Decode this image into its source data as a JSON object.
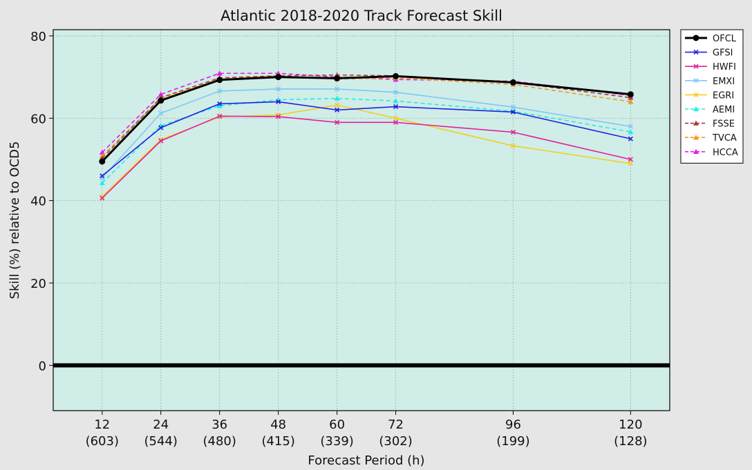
{
  "chart_data": {
    "type": "line",
    "title": "Atlantic 2018-2020 Track Forecast Skill",
    "xlabel": "Forecast Period (h)",
    "ylabel": "Skill (%) relative to OCD5",
    "x": [
      12,
      24,
      36,
      48,
      60,
      72,
      96,
      120
    ],
    "x_tick_labels": [
      "12",
      "24",
      "36",
      "48",
      "60",
      "72",
      "96",
      "120"
    ],
    "x_tick_counts": [
      "(603)",
      "(544)",
      "(480)",
      "(415)",
      "(339)",
      "(302)",
      "(199)",
      "(128)"
    ],
    "xlim": [
      2,
      128
    ],
    "ylim": [
      -11,
      81.5
    ],
    "y_ticks": [
      0,
      20,
      40,
      60,
      80
    ],
    "y_tick_labels": [
      "0",
      "20",
      "40",
      "60",
      "80"
    ],
    "grid": true,
    "background": "#d0ede8",
    "zero_line": true,
    "legend_position": "right-top",
    "series": [
      {
        "name": "OFCL",
        "color": "#000000",
        "dash": "solid",
        "marker": "circle",
        "width": 3,
        "values": [
          49.5,
          64.3,
          69.3,
          70.0,
          69.7,
          70.2,
          68.7,
          65.8
        ]
      },
      {
        "name": "GFSI",
        "color": "#1f1fe0",
        "dash": "solid",
        "marker": "x",
        "width": 1.6,
        "values": [
          46.0,
          57.7,
          63.5,
          64.0,
          62.0,
          62.8,
          61.5,
          55.0
        ]
      },
      {
        "name": "HWFI",
        "color": "#e0229a",
        "dash": "solid",
        "marker": "x",
        "width": 1.6,
        "values": [
          40.6,
          54.5,
          60.5,
          60.4,
          59.0,
          59.0,
          56.6,
          50.0
        ]
      },
      {
        "name": "EMXI",
        "color": "#7ec8f5",
        "dash": "solid",
        "marker": "x",
        "width": 1.6,
        "values": [
          45.5,
          61.2,
          66.6,
          67.1,
          67.1,
          66.3,
          62.7,
          58.0
        ]
      },
      {
        "name": "EGRI",
        "color": "#f2cf20",
        "dash": "solid",
        "marker": "x",
        "width": 1.6,
        "values": [
          41.0,
          54.8,
          60.3,
          60.8,
          63.2,
          60.0,
          53.3,
          49.0
        ]
      },
      {
        "name": "AEMI",
        "color": "#22ece8",
        "dash": "dashed",
        "marker": "triangle",
        "width": 1.6,
        "values": [
          44.3,
          58.2,
          63.0,
          64.5,
          64.8,
          64.2,
          61.7,
          56.7
        ]
      },
      {
        "name": "FSSE",
        "color": "#a83a3a",
        "dash": "dashed",
        "marker": "triangle",
        "width": 1.6,
        "values": [
          50.3,
          65.0,
          69.8,
          70.3,
          70.5,
          70.3,
          68.7,
          65.0
        ]
      },
      {
        "name": "TVCA",
        "color": "#f29a1a",
        "dash": "dashed",
        "marker": "triangle",
        "width": 1.6,
        "values": [
          50.8,
          64.8,
          69.5,
          70.3,
          69.5,
          69.8,
          68.2,
          64.0
        ]
      },
      {
        "name": "HCCA",
        "color": "#ea18e8",
        "dash": "dashed",
        "marker": "triangle",
        "width": 1.6,
        "values": [
          51.7,
          65.8,
          70.9,
          70.9,
          70.0,
          69.4,
          69.0,
          65.5
        ]
      }
    ]
  }
}
